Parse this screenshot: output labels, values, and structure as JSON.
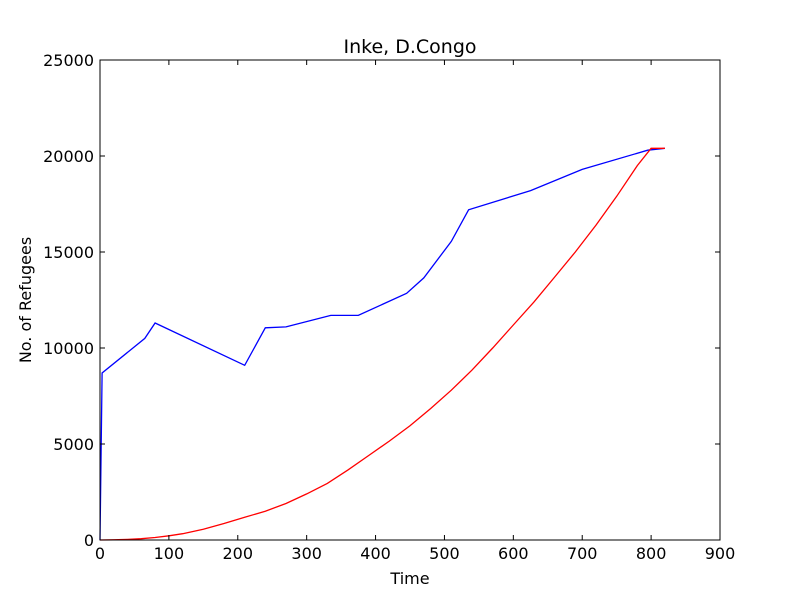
{
  "chart_data": {
    "type": "line",
    "title": "Inke, D.Congo",
    "xlabel": "Time",
    "ylabel": "No. of Refugees",
    "xlim": [
      0,
      900
    ],
    "ylim": [
      0,
      25000
    ],
    "xticks": [
      0,
      100,
      200,
      300,
      400,
      500,
      600,
      700,
      800,
      900
    ],
    "yticks": [
      0,
      5000,
      10000,
      15000,
      20000,
      25000
    ],
    "grid": false,
    "series": [
      {
        "color": "#0000ff",
        "x": [
          0,
          3,
          65,
          80,
          210,
          240,
          270,
          335,
          375,
          445,
          470,
          510,
          535,
          625,
          700,
          795,
          820
        ],
        "y": [
          0,
          8700,
          10500,
          11300,
          9100,
          11050,
          11100,
          11700,
          11700,
          12850,
          13650,
          15550,
          17200,
          18200,
          19300,
          20300,
          20400
        ]
      },
      {
        "color": "#ff0000",
        "x": [
          0,
          20,
          40,
          60,
          80,
          100,
          120,
          150,
          180,
          210,
          240,
          270,
          300,
          330,
          360,
          390,
          420,
          450,
          480,
          510,
          540,
          570,
          600,
          630,
          660,
          690,
          720,
          750,
          780,
          800,
          820
        ],
        "y": [
          0,
          10,
          30,
          70,
          130,
          220,
          330,
          560,
          860,
          1180,
          1500,
          1900,
          2400,
          2950,
          3650,
          4400,
          5150,
          5950,
          6850,
          7800,
          8850,
          10000,
          11200,
          12400,
          13700,
          15000,
          16400,
          17900,
          19500,
          20400,
          20400
        ]
      }
    ]
  }
}
